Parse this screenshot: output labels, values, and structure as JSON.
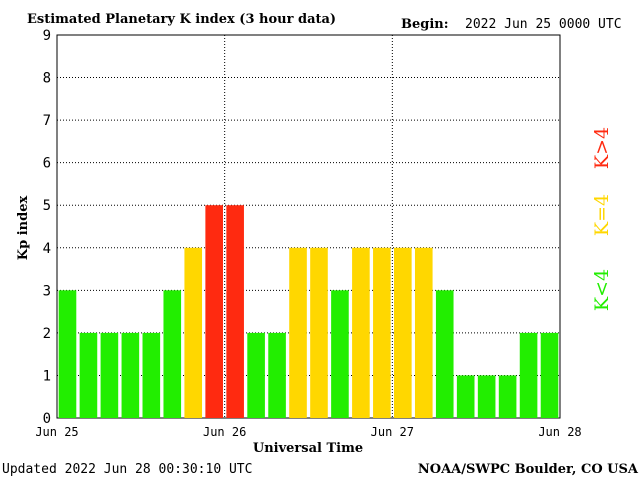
{
  "title": "Estimated Planetary K index (3 hour data)",
  "begin": {
    "label": "Begin:",
    "value": "2022 Jun 25 0000 UTC"
  },
  "footer": {
    "updated": "Updated 2022 Jun 28 00:30:10 UTC",
    "source": "NOAA/SWPC Boulder, CO USA"
  },
  "legend": [
    {
      "label": "K<4",
      "color": "#22ee00"
    },
    {
      "label": "K=4",
      "color": "#ffd700"
    },
    {
      "label": "K>4",
      "color": "#ff2a10"
    }
  ],
  "colors": {
    "low": "#22ee00",
    "equal": "#ffd700",
    "high": "#ff2a10"
  },
  "chart_data": {
    "type": "bar",
    "title": "Estimated Planetary K index (3 hour data)",
    "xlabel": "Universal Time",
    "ylabel": "Kp index",
    "ylim": [
      0,
      9
    ],
    "yticks": [
      "0",
      "1",
      "2",
      "3",
      "4",
      "5",
      "6",
      "7",
      "8",
      "9"
    ],
    "xticks": [
      "Jun 25",
      "Jun 26",
      "Jun 27",
      "Jun 28"
    ],
    "grid": true,
    "bar_interval_hours": 3,
    "values": [
      3,
      2,
      2,
      2,
      2,
      3,
      4,
      5,
      5,
      2,
      2,
      4,
      4,
      3,
      4,
      4,
      4,
      4,
      3,
      1,
      1,
      1,
      2,
      2
    ]
  }
}
